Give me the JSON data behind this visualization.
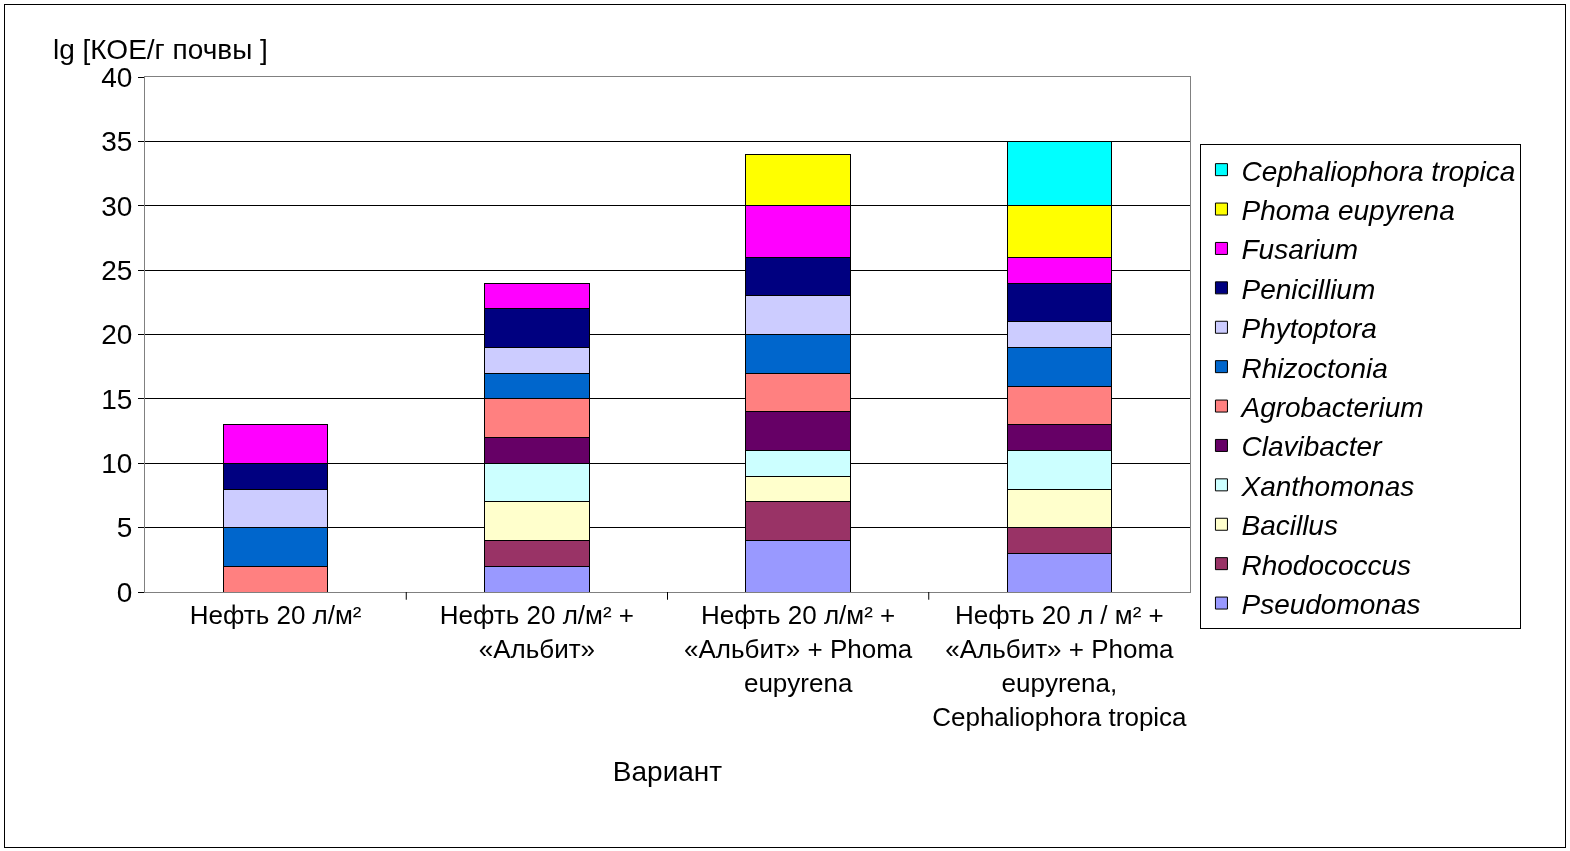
{
  "chart_data": {
    "type": "bar",
    "stacked": true,
    "xlabel": "Вариант",
    "ylabel": "lg [КОЕ/г почвы ]",
    "categories": [
      "Нефть 20 л/м²",
      "Нефть 20 л/м² + «Альбит»",
      "Нефть 20 л/м² + «Альбит» + Phoma eupyrena",
      "Нефть 20 л / м² + «Альбит» + Phoma eupyrena, Cephaliophora tropica"
    ],
    "ylim": [
      0,
      40
    ],
    "yticks": [
      0,
      5,
      10,
      15,
      20,
      25,
      30,
      35,
      40
    ],
    "grid": "y",
    "legend": "right",
    "series": [
      {
        "name": "Pseudomonas",
        "color": "#9999ff",
        "values": [
          null,
          2,
          4,
          3
        ]
      },
      {
        "name": "Rhodococcus",
        "color": "#993366",
        "values": [
          null,
          2,
          3,
          2
        ]
      },
      {
        "name": "Bacillus",
        "color": "#ffffcc",
        "values": [
          null,
          3,
          2,
          3
        ]
      },
      {
        "name": "Xanthomonas",
        "color": "#ccffff",
        "values": [
          null,
          3,
          2,
          3
        ]
      },
      {
        "name": "Clavibacter",
        "color": "#660066",
        "values": [
          null,
          2,
          3,
          2
        ]
      },
      {
        "name": "Agrobacterium",
        "color": "#ff8080",
        "values": [
          2,
          3,
          3,
          3
        ]
      },
      {
        "name": "Rhizoctonia",
        "color": "#0066cc",
        "values": [
          3,
          2,
          3,
          3
        ]
      },
      {
        "name": "Phytoptora",
        "color": "#ccccff",
        "values": [
          3,
          2,
          3,
          2
        ]
      },
      {
        "name": "Penicillium",
        "color": "#000080",
        "values": [
          2,
          3,
          3,
          3
        ]
      },
      {
        "name": "Fusarium",
        "color": "#ff00ff",
        "values": [
          3,
          2,
          4,
          2
        ]
      },
      {
        "name": "Phoma eupyrena",
        "color": "#ffff00",
        "values": [
          null,
          null,
          4,
          4
        ]
      },
      {
        "name": "Cephaliophora tropica",
        "color": "#00ffff",
        "values": [
          null,
          null,
          null,
          5
        ]
      }
    ]
  }
}
